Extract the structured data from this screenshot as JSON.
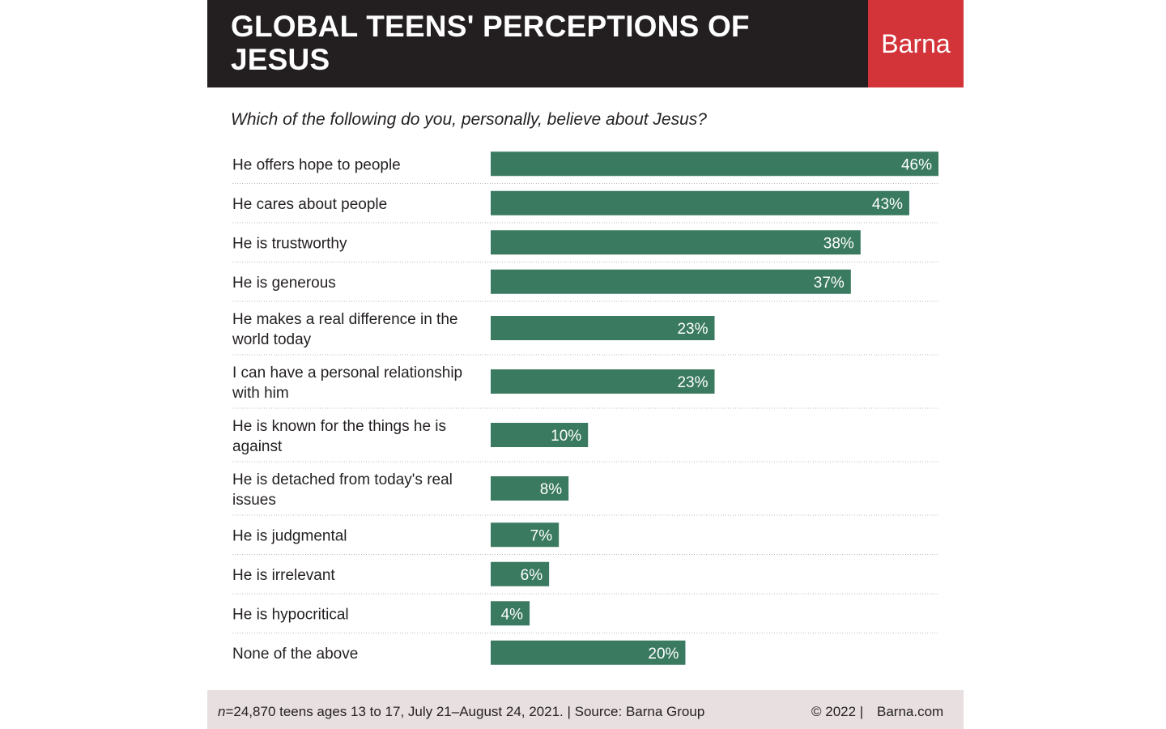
{
  "header": {
    "title": "GLOBAL TEENS' PERCEPTIONS OF JESUS",
    "brand": "Barna"
  },
  "colors": {
    "header_bg": "#231f20",
    "brand_bg": "#d3343a",
    "bar": "#3a7a60",
    "footer_bg": "#e8e0e0"
  },
  "chart_data": {
    "type": "bar",
    "orientation": "horizontal",
    "title": "Which of the following do you, personally, believe about Jesus?",
    "categories": [
      [
        "He offers hope to people"
      ],
      [
        "He cares about people"
      ],
      [
        "He is trustworthy"
      ],
      [
        "He is generous"
      ],
      [
        "He makes a real difference in the",
        "world today"
      ],
      [
        "I can have a personal relationship",
        "with him"
      ],
      [
        "He is known for the things he is",
        "against"
      ],
      [
        "He is detached from today's real",
        "issues"
      ],
      [
        "He is judgmental"
      ],
      [
        "He is irrelevant"
      ],
      [
        "He is hypocritical"
      ],
      [
        "None of the above"
      ]
    ],
    "values": [
      46,
      43,
      38,
      37,
      23,
      23,
      10,
      8,
      7,
      6,
      4,
      20
    ],
    "value_labels": [
      "46%",
      "43%",
      "38%",
      "37%",
      "23%",
      "23%",
      "10%",
      "8%",
      "7%",
      "6%",
      "4%",
      "20%"
    ],
    "unit": "%",
    "xlim": [
      0,
      46
    ],
    "grid": false,
    "legend": "none"
  },
  "footer": {
    "sample_n": "n",
    "note": "=24,870 teens ages 13 to 17, July 21–August 24, 2021. | Source: Barna Group",
    "copyright": "© 2022 |",
    "site": "Barna.com"
  }
}
